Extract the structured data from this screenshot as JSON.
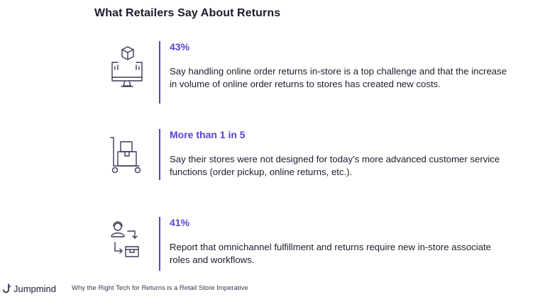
{
  "title": "What Retailers Say About Returns",
  "accent_color": "#5b3fd8",
  "stats": [
    {
      "value": "43%",
      "icon": "monitor-package-icon",
      "text": "Say handling online order returns in-store is a top challenge and that the increase in volume of online order returns to stores has created new costs."
    },
    {
      "value": "More than 1 in 5",
      "icon": "hand-truck-boxes-icon",
      "text": "Say their stores were not designed for today’s more advanced customer service functions (order pickup, online returns, etc.)."
    },
    {
      "value": "41%",
      "icon": "associate-return-flow-icon",
      "text": "Report that omnichannel fulfillment and returns require new in-store associate roles and workflows."
    }
  ],
  "footer": {
    "brand": "Jumpmind",
    "note": "Why the Right Tech for Returns is a Retail Store Imperative"
  }
}
